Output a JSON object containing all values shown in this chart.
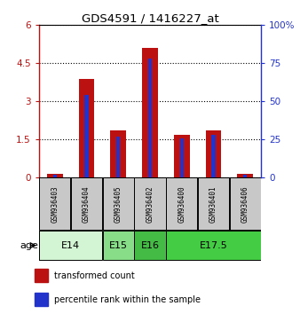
{
  "title": "GDS4591 / 1416227_at",
  "samples": [
    "GSM936403",
    "GSM936404",
    "GSM936405",
    "GSM936402",
    "GSM936400",
    "GSM936401",
    "GSM936406"
  ],
  "transformed_count": [
    0.15,
    3.9,
    1.85,
    5.1,
    1.7,
    1.85,
    0.15
  ],
  "percentile_rank_pct": [
    2.0,
    54.0,
    27.0,
    78.0,
    26.0,
    28.0,
    2.0
  ],
  "left_ylim": [
    0,
    6
  ],
  "left_yticks": [
    0,
    1.5,
    3,
    4.5,
    6
  ],
  "left_yticklabels": [
    "0",
    "1.5",
    "3",
    "4.5",
    "6"
  ],
  "right_ylim": [
    0,
    100
  ],
  "right_yticks": [
    0,
    25,
    50,
    75,
    100
  ],
  "right_yticklabels": [
    "0",
    "25",
    "50",
    "75",
    "100%"
  ],
  "bar_color_red": "#bb1111",
  "bar_color_blue": "#2233cc",
  "age_groups": [
    {
      "label": "E14",
      "start": 0,
      "end": 1,
      "color": "#d4f5d4"
    },
    {
      "label": "E15",
      "start": 2,
      "end": 2,
      "color": "#88dd88"
    },
    {
      "label": "E16",
      "start": 3,
      "end": 3,
      "color": "#44bb44"
    },
    {
      "label": "E17.5",
      "start": 4,
      "end": 6,
      "color": "#44cc44"
    }
  ],
  "red_bar_width": 0.5,
  "blue_bar_width": 0.12,
  "sample_bg_color": "#c8c8c8",
  "legend_red_label": "transformed count",
  "legend_blue_label": "percentile rank within the sample",
  "fig_width": 3.38,
  "fig_height": 3.54
}
